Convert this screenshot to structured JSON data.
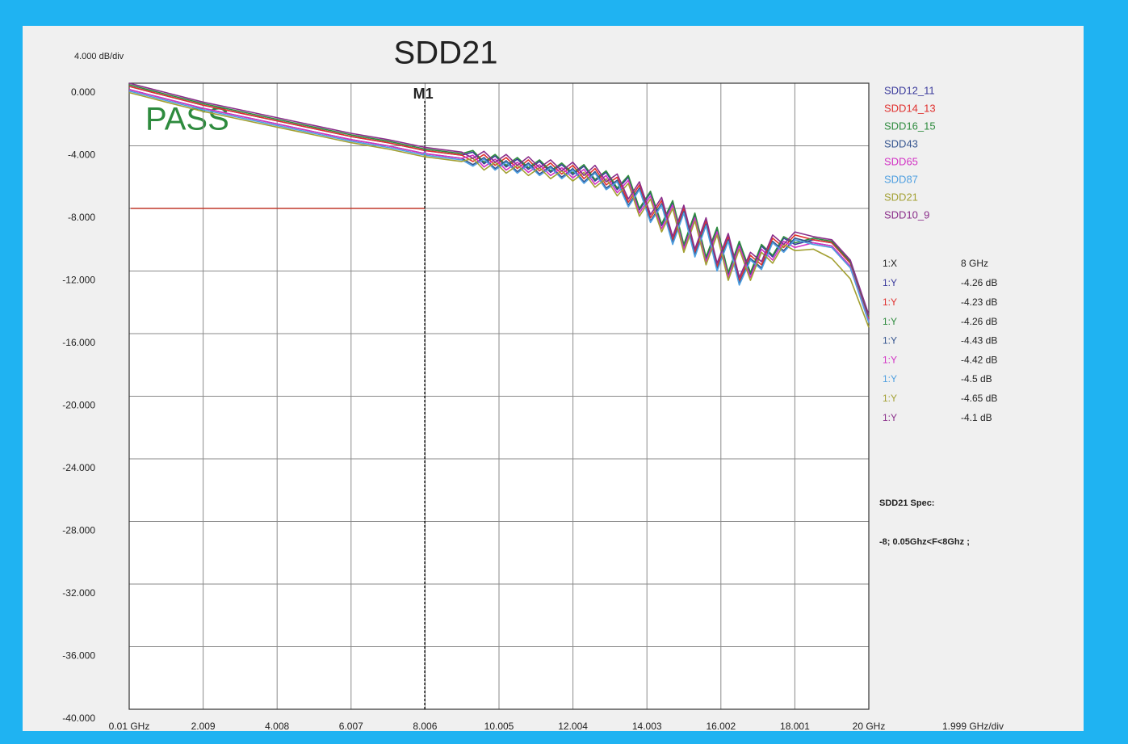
{
  "chart_data": {
    "type": "line",
    "title": "SDD21",
    "y_scale_label": "4.000 dB/div",
    "x_scale_label": "1.999 GHz/div",
    "annotation": "PASS",
    "grid": true,
    "xlim": [
      0.01,
      20
    ],
    "ylim": [
      -40,
      0
    ],
    "xticks": [
      {
        "value": 0.01,
        "label": "0.01 GHz"
      },
      2.009,
      4.008,
      6.007,
      8.006,
      10.005,
      12.004,
      14.003,
      16.002,
      18.001,
      {
        "value": 20,
        "label": "20 GHz"
      }
    ],
    "yticks": [
      {
        "value": 0,
        "label": "0.000"
      },
      {
        "value": -4,
        "label": "-4.000"
      },
      {
        "value": -8,
        "label": "-8.000"
      },
      {
        "value": -12,
        "label": "-12.000"
      },
      {
        "value": -16,
        "label": "-16.000"
      },
      {
        "value": -20,
        "label": "-20.000"
      },
      {
        "value": -24,
        "label": "-24.000"
      },
      {
        "value": -28,
        "label": "-28.000"
      },
      {
        "value": -32,
        "label": "-32.000"
      },
      {
        "value": -36,
        "label": "-36.000"
      },
      {
        "value": -40,
        "label": "-40.000"
      }
    ],
    "x": [
      0.01,
      0.5,
      1,
      2,
      3,
      4,
      5,
      6,
      7,
      8,
      9,
      9.3,
      9.6,
      9.9,
      10.2,
      10.5,
      10.8,
      11.1,
      11.4,
      11.7,
      12,
      12.3,
      12.6,
      12.9,
      13.2,
      13.5,
      13.8,
      14.1,
      14.4,
      14.7,
      15,
      15.3,
      15.6,
      15.9,
      16.2,
      16.5,
      16.8,
      17.1,
      17.4,
      17.7,
      18,
      18.5,
      19,
      19.5,
      20
    ],
    "series": [
      {
        "name": "SDD12_11",
        "color": "#3b3b9c",
        "values": [
          -0.2,
          -0.5,
          -0.8,
          -1.4,
          -1.9,
          -2.4,
          -2.9,
          -3.4,
          -3.8,
          -4.3,
          -4.6,
          -4.4,
          -5.15,
          -4.65,
          -5.35,
          -4.85,
          -5.5,
          -5.0,
          -5.7,
          -5.2,
          -5.85,
          -5.3,
          -6.25,
          -5.7,
          -6.8,
          -6.0,
          -8.1,
          -7.0,
          -9.1,
          -7.6,
          -10.4,
          -8.4,
          -11.2,
          -9.3,
          -12.2,
          -10.2,
          -12.2,
          -10.4,
          -11.1,
          -9.9,
          -10.3,
          -10.0,
          -10.2,
          -11.5,
          -15.0
        ]
      },
      {
        "name": "SDD14_13",
        "color": "#e0302e",
        "values": [
          -0.2,
          -0.5,
          -0.8,
          -1.4,
          -1.9,
          -2.4,
          -2.9,
          -3.4,
          -3.8,
          -4.3,
          -4.6,
          -5.0,
          -4.55,
          -5.25,
          -4.75,
          -5.45,
          -4.9,
          -5.6,
          -5.1,
          -5.8,
          -5.25,
          -6.1,
          -5.45,
          -6.5,
          -6.0,
          -7.6,
          -6.5,
          -8.6,
          -7.5,
          -10.0,
          -8.0,
          -10.8,
          -8.8,
          -11.7,
          -9.8,
          -12.6,
          -11.0,
          -11.6,
          -9.9,
          -10.5,
          -9.7,
          -10.0,
          -10.2,
          -11.5,
          -15.0
        ]
      },
      {
        "name": "SDD16_15",
        "color": "#2e8b3e",
        "values": [
          -0.1,
          -0.4,
          -0.7,
          -1.3,
          -1.8,
          -2.3,
          -2.8,
          -3.3,
          -3.7,
          -4.2,
          -4.5,
          -4.3,
          -5.05,
          -4.55,
          -5.25,
          -4.75,
          -5.4,
          -4.9,
          -5.6,
          -5.1,
          -5.75,
          -5.2,
          -6.15,
          -5.6,
          -6.7,
          -5.9,
          -8.0,
          -6.9,
          -9.0,
          -7.5,
          -10.3,
          -8.3,
          -11.1,
          -9.2,
          -12.1,
          -10.1,
          -12.1,
          -10.3,
          -11.0,
          -9.8,
          -10.2,
          -9.9,
          -10.1,
          -11.4,
          -14.9
        ]
      },
      {
        "name": "SDD43",
        "color": "#35558f",
        "values": [
          -0.4,
          -0.7,
          -1.0,
          -1.6,
          -2.1,
          -2.6,
          -3.1,
          -3.6,
          -4.0,
          -4.5,
          -4.8,
          -5.2,
          -4.75,
          -5.45,
          -4.95,
          -5.65,
          -5.1,
          -5.8,
          -5.3,
          -6.0,
          -5.45,
          -6.3,
          -5.65,
          -6.7,
          -6.2,
          -7.8,
          -6.7,
          -8.8,
          -7.7,
          -10.2,
          -8.2,
          -11.0,
          -9.0,
          -11.9,
          -10.0,
          -12.8,
          -11.2,
          -11.8,
          -10.1,
          -10.7,
          -9.9,
          -10.2,
          -10.4,
          -11.7,
          -15.2
        ]
      },
      {
        "name": "SDD65",
        "color": "#d232c4",
        "values": [
          -0.4,
          -0.7,
          -1.0,
          -1.6,
          -2.1,
          -2.6,
          -3.1,
          -3.6,
          -4.0,
          -4.5,
          -4.8,
          -4.6,
          -5.35,
          -4.85,
          -5.55,
          -5.05,
          -5.7,
          -5.2,
          -5.9,
          -5.4,
          -6.05,
          -5.5,
          -6.45,
          -5.9,
          -7.0,
          -6.2,
          -8.3,
          -7.2,
          -9.3,
          -7.8,
          -10.6,
          -8.6,
          -11.4,
          -9.5,
          -12.4,
          -10.4,
          -12.4,
          -10.6,
          -11.3,
          -10.1,
          -10.5,
          -10.2,
          -10.4,
          -11.7,
          -15.2
        ]
      },
      {
        "name": "SDD87",
        "color": "#4f9fe0",
        "values": [
          -0.5,
          -0.8,
          -1.1,
          -1.7,
          -2.2,
          -2.7,
          -3.2,
          -3.7,
          -4.1,
          -4.6,
          -4.9,
          -5.3,
          -4.85,
          -5.55,
          -5.05,
          -5.75,
          -5.2,
          -5.9,
          -5.4,
          -6.1,
          -5.55,
          -6.4,
          -5.75,
          -6.8,
          -6.3,
          -7.9,
          -6.8,
          -8.9,
          -7.8,
          -10.3,
          -8.3,
          -11.1,
          -9.1,
          -12.0,
          -10.1,
          -12.9,
          -11.3,
          -11.9,
          -10.2,
          -10.8,
          -10.0,
          -10.3,
          -10.5,
          -11.8,
          -15.3
        ]
      },
      {
        "name": "SDD21",
        "color": "#a3a033",
        "values": [
          -0.6,
          -0.9,
          -1.2,
          -1.8,
          -2.3,
          -2.8,
          -3.3,
          -3.8,
          -4.2,
          -4.7,
          -5.0,
          -4.8,
          -5.55,
          -5.05,
          -5.75,
          -5.25,
          -5.9,
          -5.4,
          -6.1,
          -5.6,
          -6.25,
          -5.7,
          -6.65,
          -6.1,
          -7.2,
          -6.4,
          -8.5,
          -7.4,
          -9.5,
          -8.0,
          -10.8,
          -8.8,
          -11.6,
          -9.7,
          -12.6,
          -10.6,
          -12.6,
          -10.8,
          -11.5,
          -10.3,
          -10.7,
          -10.6,
          -11.2,
          -12.5,
          -15.6
        ]
      },
      {
        "name": "SDD10_9",
        "color": "#8a2d8a",
        "values": [
          0.0,
          -0.3,
          -0.6,
          -1.2,
          -1.7,
          -2.2,
          -2.7,
          -3.2,
          -3.6,
          -4.1,
          -4.4,
          -4.8,
          -4.35,
          -5.05,
          -4.55,
          -5.25,
          -4.7,
          -5.4,
          -4.9,
          -5.6,
          -5.05,
          -5.9,
          -5.25,
          -6.3,
          -5.8,
          -7.4,
          -6.3,
          -8.4,
          -7.3,
          -9.8,
          -7.8,
          -10.6,
          -8.6,
          -11.5,
          -9.6,
          -12.4,
          -10.8,
          -11.4,
          -9.7,
          -10.3,
          -9.5,
          -9.8,
          -10.0,
          -11.3,
          -14.8
        ]
      }
    ],
    "marker": {
      "name": "M1",
      "x": 8,
      "x_prefix": "1:X",
      "x_label": "8 GHz",
      "y_prefix": "1:Y",
      "values": [
        -4.26,
        -4.23,
        -4.26,
        -4.43,
        -4.42,
        -4.5,
        -4.65,
        -4.1
      ],
      "value_labels": [
        "-4.26 dB",
        "-4.23 dB",
        "-4.26 dB",
        "-4.43 dB",
        "-4.42 dB",
        "-4.5 dB",
        "-4.65 dB",
        "-4.1 dB"
      ]
    },
    "spec": {
      "title": "SDD21 Spec:",
      "text": "-8; 0.05Ghz<F<8Ghz ;",
      "value": -8,
      "xlim": [
        0.05,
        8
      ],
      "color": "#c0392b"
    }
  }
}
